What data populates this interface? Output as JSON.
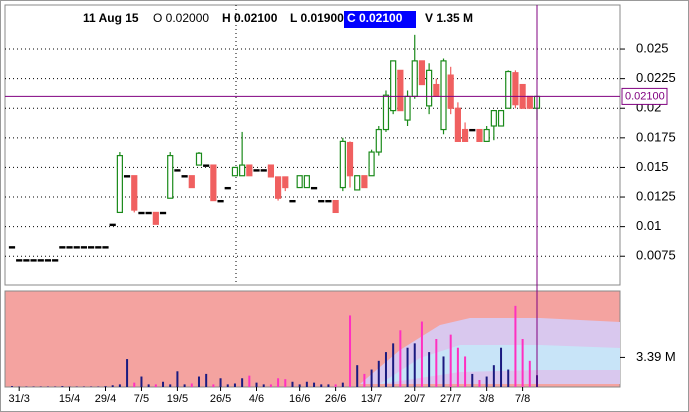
{
  "chart_data": {
    "type": "candlestick",
    "header": {
      "date": "11 Aug 15",
      "open": "O 0.02000",
      "high": "H 0.02100",
      "low": "L 0.01900",
      "close": "C 0.02100",
      "volume": "V 1.35 M"
    },
    "cursor_label": "0.02100",
    "categories": [
      null,
      "31/3",
      null,
      null,
      null,
      null,
      null,
      null,
      "15/4",
      null,
      null,
      null,
      null,
      "29/4",
      null,
      null,
      null,
      null,
      "7/5",
      null,
      null,
      null,
      null,
      "19/5",
      null,
      null,
      null,
      null,
      null,
      "26/5",
      null,
      null,
      null,
      null,
      "4/6",
      null,
      null,
      null,
      null,
      null,
      "16/6",
      null,
      null,
      null,
      null,
      "26/6",
      null,
      null,
      null,
      null,
      "13/7",
      null,
      null,
      null,
      null,
      null,
      "20/7",
      null,
      null,
      null,
      null,
      "27/7",
      null,
      null,
      null,
      null,
      "3/8",
      null,
      null,
      null,
      null,
      "7/8",
      null,
      null
    ],
    "open": [
      0.0083,
      0.0072,
      0.0072,
      0.0072,
      0.0072,
      0.0072,
      0.0072,
      0.0083,
      0.0083,
      0.0083,
      0.0083,
      0.0083,
      0.0083,
      0.0083,
      0.0102,
      0.0112,
      0.0143,
      0.0143,
      0.0112,
      0.0112,
      0.0112,
      0.0112,
      0.0124,
      0.0148,
      0.0143,
      0.0143,
      0.0152,
      0.0152,
      0.0152,
      0.0122,
      0.0133,
      0.0143,
      0.0143,
      0.0152,
      0.0148,
      0.0148,
      0.0152,
      0.0142,
      0.0142,
      0.0122,
      0.0133,
      0.0133,
      0.0133,
      0.0122,
      0.0122,
      0.0122,
      0.0133,
      0.0171,
      0.0131,
      0.0143,
      0.0143,
      0.0163,
      0.0182,
      0.0198,
      0.0232,
      0.019,
      0.021,
      0.024,
      0.0202,
      0.022,
      0.0182,
      0.0228,
      0.02,
      0.0182,
      0.0182,
      0.0182,
      0.0172,
      0.0185,
      0.0185,
      0.02,
      0.023,
      0.022,
      0.021,
      0.02
    ],
    "high": [
      0.0083,
      0.0072,
      0.0072,
      0.0072,
      0.0072,
      0.0072,
      0.0072,
      0.0083,
      0.0083,
      0.0083,
      0.0083,
      0.0083,
      0.0083,
      0.0083,
      0.0102,
      0.0163,
      0.0143,
      0.0143,
      0.0112,
      0.0112,
      0.0112,
      0.0112,
      0.0163,
      0.0148,
      0.0143,
      0.0143,
      0.0163,
      0.0152,
      0.0152,
      0.0122,
      0.0133,
      0.015,
      0.018,
      0.0152,
      0.0148,
      0.0148,
      0.0152,
      0.0142,
      0.0142,
      0.0122,
      0.0143,
      0.0143,
      0.0133,
      0.0122,
      0.0122,
      0.0122,
      0.0175,
      0.0172,
      0.0143,
      0.0143,
      0.0165,
      0.0185,
      0.0215,
      0.024,
      0.0232,
      0.0215,
      0.0262,
      0.024,
      0.0238,
      0.0225,
      0.0242,
      0.0235,
      0.0205,
      0.0188,
      0.0182,
      0.0182,
      0.0185,
      0.0198,
      0.0198,
      0.0232,
      0.0232,
      0.022,
      0.021,
      0.021
    ],
    "low": [
      0.0083,
      0.0072,
      0.0072,
      0.0072,
      0.0072,
      0.0072,
      0.0072,
      0.0083,
      0.0083,
      0.0083,
      0.0083,
      0.0083,
      0.0083,
      0.0083,
      0.0102,
      0.0112,
      0.0143,
      0.0112,
      0.0112,
      0.0112,
      0.0102,
      0.0112,
      0.0124,
      0.0148,
      0.0143,
      0.0133,
      0.0152,
      0.0152,
      0.0122,
      0.0122,
      0.0133,
      0.0143,
      0.0143,
      0.0143,
      0.0148,
      0.0148,
      0.0142,
      0.0122,
      0.013,
      0.0122,
      0.0133,
      0.0133,
      0.0133,
      0.0122,
      0.0122,
      0.0112,
      0.013,
      0.0133,
      0.0131,
      0.0133,
      0.0143,
      0.016,
      0.018,
      0.0195,
      0.0198,
      0.0185,
      0.0208,
      0.022,
      0.0195,
      0.021,
      0.0178,
      0.0195,
      0.0172,
      0.0172,
      0.0182,
      0.0172,
      0.0172,
      0.0173,
      0.0185,
      0.02,
      0.02,
      0.02,
      0.02,
      0.019
    ],
    "close": [
      0.0083,
      0.0072,
      0.0072,
      0.0072,
      0.0072,
      0.0072,
      0.0072,
      0.0083,
      0.0083,
      0.0083,
      0.0083,
      0.0083,
      0.0083,
      0.0083,
      0.0102,
      0.016,
      0.0143,
      0.0114,
      0.0112,
      0.0112,
      0.0102,
      0.0112,
      0.016,
      0.0148,
      0.0143,
      0.0133,
      0.0162,
      0.0152,
      0.0122,
      0.0122,
      0.0133,
      0.015,
      0.0152,
      0.0143,
      0.0148,
      0.0148,
      0.0142,
      0.0124,
      0.0133,
      0.0122,
      0.0143,
      0.0143,
      0.0133,
      0.0122,
      0.0122,
      0.0112,
      0.0172,
      0.0143,
      0.0143,
      0.0133,
      0.0163,
      0.0182,
      0.0211,
      0.024,
      0.0198,
      0.021,
      0.024,
      0.022,
      0.0232,
      0.021,
      0.024,
      0.02,
      0.0172,
      0.0172,
      0.0182,
      0.0172,
      0.0182,
      0.0198,
      0.0198,
      0.0231,
      0.0203,
      0.02,
      0.02,
      0.021
    ],
    "up_color": "#1a8a1a",
    "down_color": "#f06060",
    "flat_color": "#000000",
    "ylim": [
      0.00507,
      0.02872
    ],
    "yticks": [
      0.0075,
      0.01,
      0.0125,
      0.015,
      0.0175,
      0.02,
      0.0225,
      0.025
    ],
    "grid": true,
    "volume": {
      "values": [
        100000,
        50000,
        50000,
        50000,
        50000,
        50000,
        50000,
        100000,
        50000,
        50000,
        50000,
        50000,
        50000,
        100000,
        200000,
        300000,
        3200000,
        500000,
        1200000,
        300000,
        300000,
        600000,
        300000,
        1800000,
        300000,
        400000,
        1200000,
        1500000,
        300000,
        1000000,
        300000,
        400000,
        1000000,
        1300000,
        500000,
        300000,
        300000,
        1000000,
        900000,
        600000,
        300000,
        600000,
        500000,
        300000,
        300000,
        300000,
        500000,
        8200000,
        2500000,
        1500000,
        2000000,
        3000000,
        4000000,
        5000000,
        6500000,
        4500000,
        5000000,
        7500000,
        4000000,
        5500000,
        3500000,
        6000000,
        4500000,
        3500000,
        1500000,
        800000,
        1200000,
        2500000,
        4500000,
        2000000,
        9300000,
        5500000,
        3000000,
        1350000
      ],
      "ylim": [
        0,
        11000000
      ],
      "yticks": [
        {
          "value": 3390000,
          "label": "3.39 M"
        }
      ],
      "color": "#1a1a80",
      "down_color": "#ff30c0"
    }
  }
}
